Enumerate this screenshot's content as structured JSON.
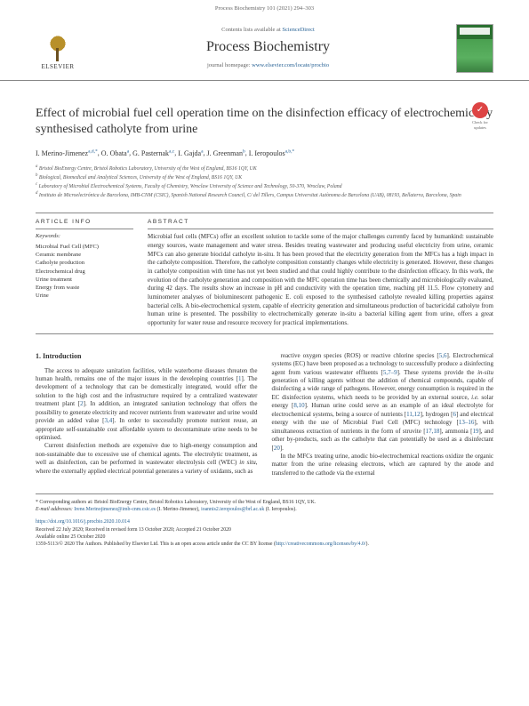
{
  "header": {
    "running_head": "Process Biochemistry 101 (2021) 294–303",
    "contents_line": "Contents lists available at ",
    "contents_link": "ScienceDirect",
    "journal_title": "Process Biochemistry",
    "homepage_prefix": "journal homepage: ",
    "homepage_url": "www.elsevier.com/locate/procbio",
    "publisher": "ELSEVIER",
    "update_badge": "Check for updates"
  },
  "article": {
    "title": "Effect of microbial fuel cell operation time on the disinfection efficacy of electrochemically synthesised catholyte from urine",
    "authors_html": "I. Merino-Jimenez",
    "authors": [
      {
        "name": "I. Merino-Jimenez",
        "sup": "a,d,*"
      },
      {
        "name": "O. Obata",
        "sup": "a"
      },
      {
        "name": "G. Pasternak",
        "sup": "a,c"
      },
      {
        "name": "I. Gajda",
        "sup": "a"
      },
      {
        "name": "J. Greenman",
        "sup": "b"
      },
      {
        "name": "I. Ieropoulos",
        "sup": "a,b,*"
      }
    ],
    "affiliations": [
      {
        "label": "a",
        "text": "Bristol BioEnergy Centre, Bristol Robotics Laboratory, University of the West of England, BS16 1QY, UK"
      },
      {
        "label": "b",
        "text": "Biological, Biomedical and Analytical Sciences, University of the West of England, BS16 1QY, UK"
      },
      {
        "label": "c",
        "text": "Laboratory of Microbial Electrochemical Systems, Faculty of Chemistry, Wroclaw University of Science and Technology, 50-370, Wroclaw, Poland"
      },
      {
        "label": "d",
        "text": "Instituto de Microelectrónica de Barcelona, IMB-CNM (CSIC), Spanish National Research Council, C/ del Tillers, Campus Universitat Autònoma de Barcelona (UAB), 08193, Bellaterra, Barcelona, Spain"
      }
    ]
  },
  "article_info": {
    "head": "ARTICLE INFO",
    "keywords_label": "Keywords:",
    "keywords": [
      "Microbial Fuel Cell (MFC)",
      "Ceramic membrane",
      "Catholyte production",
      "Electrochemical drug",
      "Urine treatment",
      "Energy from waste",
      "Urine"
    ]
  },
  "abstract": {
    "head": "ABSTRACT",
    "text": "Microbial fuel cells (MFCs) offer an excellent solution to tackle some of the major challenges currently faced by humankind: sustainable energy sources, waste management and water stress. Besides treating wastewater and producing useful electricity from urine, ceramic MFCs can also generate biocidal catholyte in-situ. It has been proved that the electricity generation from the MFCs has a high impact in the catholyte composition. Therefore, the catholyte composition constantly changes while electricity is generated. However, these changes in catholyte composition with time has not yet been studied and that could highly contribute to the disinfection efficacy. In this work, the evolution of the catholyte generation and composition with the MFC operation time has been chemically and microbiologically evaluated, during 42 days. The results show an increase in pH and conductivity with the operation time, reaching pH 11.5. Flow cytometry and luminometer analyses of bioluminescent pathogenic E. coli exposed to the synthesised catholyte revealed killing properties against bacterial cells. A bio-electrochemical system, capable of electricity generation and simultaneous production of bactericidal catholyte from human urine is presented. The possibility to electrochemically generate in-situ a bacterial killing agent from urine, offers a great opportunity for water reuse and resource recovery for practical implementations."
  },
  "body": {
    "intro_head": "1.  Introduction",
    "col1": [
      "The access to adequate sanitation facilities, while waterborne diseases threaten the human health, remains one of the major issues in the developing countries [1]. The development of a technology that can be domestically integrated, would offer the solution to the high cost and the infrastructure required by a centralized wastewater treatment plant [2]. In addition, an integrated sanitation technology that offers the possibility to generate electricity and recover nutrients from wastewater and urine would provide an added value [3,4]. In order to successfully promote nutrient reuse, an appropriate self-sustainable cost affordable system to decontaminate urine needs to be optimised.",
      "Current disinfection methods are expensive due to high-energy consumption and non-sustainable due to excessive use of chemical agents. The electrolytic treatment, as well as disinfection, can be performed in wastewater electrolysis cell (WEC) in situ, where the externally applied electrical potential generates a variety of oxidants, such as"
    ],
    "col2": [
      "reactive oxygen species (ROS) or reactive chlorine species [5,6]. Electrochemical systems (EC) have been proposed as a technology to successfully produce a disinfecting agent from various wastewater effluents [5,7–9]. These systems provide the in-situ generation of killing agents without the addition of chemical compounds, capable of disinfecting a wide range of pathogens. However, energy consumption is required in the EC disinfection systems, which needs to be provided by an external source, i.e. solar energy [8,10]. Human urine could serve as an example of an ideal electrolyte for electrochemical systems, being a source of nutrients [11,12], hydrogen [6] and electrical energy with the use of Microbial Fuel Cell (MFC) technology [13–16], with simultaneous extraction of nutrients in the form of struvite [17,18], ammonia [19], and other by-products, such as the catholyte that can potentially be used as a disinfectant [20].",
      "In the MFCs treating urine, anodic bio-electrochemical reactions oxidize the organic matter from the urine releasing electrons, which are captured by the anode and transferred to the cathode via the external"
    ]
  },
  "footer": {
    "corr_line": "* Corresponding authors at: Bristol BioEnergy Centre, Bristol Robotics Laboratory, University of the West of England, BS16 1QY, UK.",
    "email_prefix": "E-mail addresses: ",
    "email1": "Irene.Merinojimenez@imb-cnm.csic.es",
    "email1_who": " (I. Merino-Jimenez), ",
    "email2": "ioannis2.ieropoulos@brl.ac.uk",
    "email2_who": " (I. Ieropoulos).",
    "doi": "https://doi.org/10.1016/j.procbio.2020.10.014",
    "received": "Received 22 July 2020; Received in revised form 13 October 2020; Accepted 21 October 2020",
    "available": "Available online 25 October 2020",
    "copyright_pre": "1359-5113/© 2020 The Authors. Published by Elsevier Ltd. This is an open access article under the CC BY license (",
    "cc_link": "http://creativecommons.org/licenses/by/4.0/",
    "copyright_post": ")."
  }
}
